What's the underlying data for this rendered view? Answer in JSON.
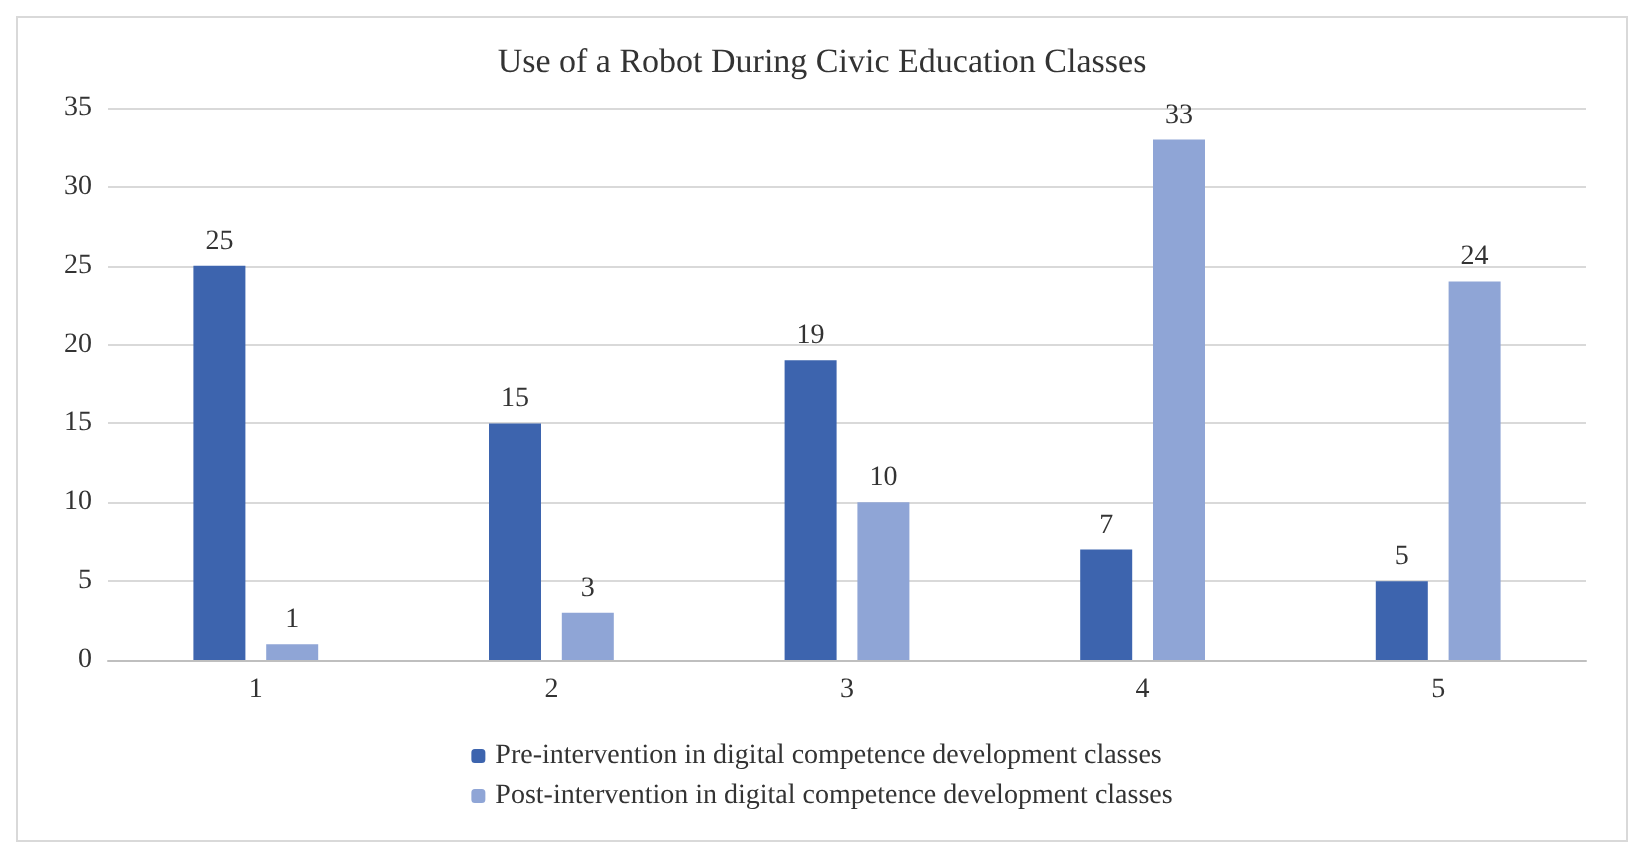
{
  "chart_data": {
    "type": "bar",
    "title": "Use of a Robot During Civic Education Classes",
    "categories": [
      "1",
      "2",
      "3",
      "4",
      "5"
    ],
    "series": [
      {
        "name": "Pre-intervention in digital competence development classes",
        "color": "#3d64ae",
        "values": [
          25,
          15,
          19,
          7,
          5
        ]
      },
      {
        "name": "Post-intervention in digital competence development classes",
        "color": "#8fa5d6",
        "values": [
          1,
          3,
          10,
          33,
          24
        ]
      }
    ],
    "ylim": [
      0,
      35
    ],
    "yticks": [
      0,
      5,
      10,
      15,
      20,
      25,
      30,
      35
    ],
    "grid": "y",
    "legend": "bottom",
    "data_labels": true
  }
}
